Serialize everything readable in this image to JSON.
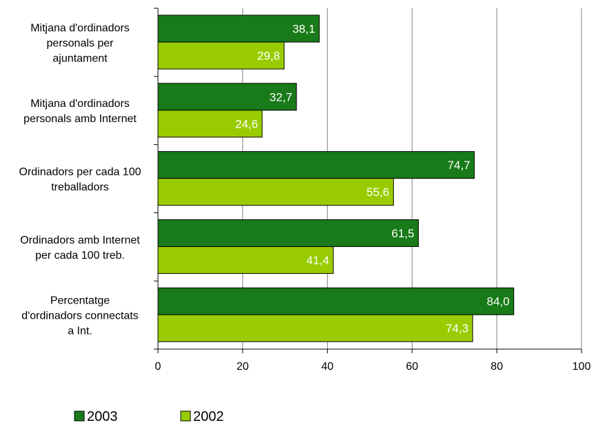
{
  "chart_data": {
    "type": "bar",
    "orientation": "horizontal",
    "title": "",
    "xlabel": "",
    "ylabel": "",
    "xlim": [
      0,
      100
    ],
    "x_ticks": [
      "0",
      "20",
      "40",
      "60",
      "80",
      "100"
    ],
    "grid": "vertical lines",
    "legend_position": "bottom-left",
    "categories": [
      [
        "Mitjana d'ordinadors",
        "personals per",
        "ajuntament"
      ],
      [
        "Mitjana d'ordinadors",
        "personals amb Internet"
      ],
      [
        "Ordinadors per cada 100",
        "treballadors"
      ],
      [
        "Ordinadors amb Internet",
        "per cada 100 treb."
      ],
      [
        "Percentatge",
        "d'ordinadors connectats",
        "a Int."
      ]
    ],
    "series": [
      {
        "name": "2003",
        "color": "#187a18",
        "values": [
          38.1,
          32.7,
          74.7,
          61.5,
          84.0
        ],
        "labels": [
          "38,1",
          "32,7",
          "74,7",
          "61,5",
          "84,0"
        ]
      },
      {
        "name": "2002",
        "color": "#99cc00",
        "values": [
          29.8,
          24.6,
          55.6,
          41.4,
          74.3
        ],
        "labels": [
          "29,8",
          "24,6",
          "55,6",
          "41,4",
          "74,3"
        ]
      }
    ]
  }
}
